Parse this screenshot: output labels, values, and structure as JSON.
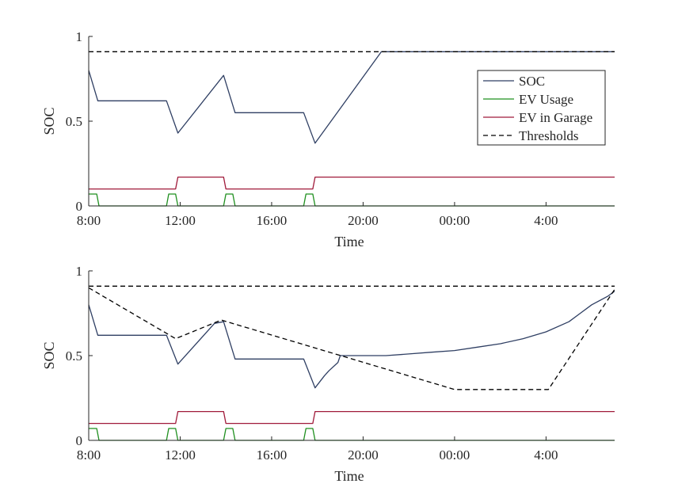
{
  "chart_data": [
    {
      "type": "line",
      "xlabel": "Time",
      "ylabel": "SOC",
      "xlim": [
        8,
        31
      ],
      "ylim": [
        0,
        1
      ],
      "xticks": [
        8,
        12,
        16,
        20,
        24,
        28
      ],
      "xtick_labels": [
        "8:00",
        "12:00",
        "16:00",
        "20:00",
        "00:00",
        "4:00"
      ],
      "yticks": [
        0,
        0.5,
        1
      ],
      "ytick_labels": [
        "0",
        "0.5",
        "1"
      ],
      "grid": false,
      "legend": {
        "placement": "top-right",
        "entries": [
          "SOC",
          "EV Usage",
          "EV in Garage",
          "Thresholds"
        ]
      },
      "series": [
        {
          "name": "SOC",
          "color": "#2f3f63",
          "x": [
            8,
            8.4,
            11.4,
            11.9,
            13.9,
            14.4,
            17.4,
            17.9,
            20.8,
            31
          ],
          "y": [
            0.8,
            0.62,
            0.62,
            0.43,
            0.77,
            0.55,
            0.55,
            0.37,
            0.91,
            0.91
          ]
        },
        {
          "name": "EV Usage",
          "color": "#1f8f1f",
          "x": [
            8,
            8.35,
            8.45,
            11.4,
            11.5,
            11.8,
            11.9,
            13.9,
            14.0,
            14.3,
            14.4,
            17.4,
            17.5,
            17.8,
            17.9,
            31
          ],
          "y": [
            0.07,
            0.07,
            0.0,
            0.0,
            0.07,
            0.07,
            0.0,
            0.0,
            0.07,
            0.07,
            0.0,
            0.0,
            0.07,
            0.07,
            0.0,
            0.0
          ]
        },
        {
          "name": "EV in Garage",
          "color": "#a01a3a",
          "x": [
            8,
            11.8,
            11.9,
            13.9,
            14.0,
            17.8,
            17.9,
            31
          ],
          "y": [
            0.1,
            0.1,
            0.17,
            0.17,
            0.1,
            0.1,
            0.17,
            0.17
          ]
        },
        {
          "name": "Thresholds",
          "color": "#000000",
          "dashed": true,
          "x": [
            8,
            31
          ],
          "y": [
            0.91,
            0.91
          ]
        }
      ]
    },
    {
      "type": "line",
      "xlabel": "Time",
      "ylabel": "SOC",
      "xlim": [
        8,
        31
      ],
      "ylim": [
        0,
        1
      ],
      "xticks": [
        8,
        12,
        16,
        20,
        24,
        28
      ],
      "xtick_labels": [
        "8:00",
        "12:00",
        "16:00",
        "20:00",
        "00:00",
        "4:00"
      ],
      "yticks": [
        0,
        0.5,
        1
      ],
      "ytick_labels": [
        "0",
        "0.5",
        "1"
      ],
      "grid": false,
      "series": [
        {
          "name": "SOC",
          "color": "#2f3f63",
          "x": [
            8,
            8.4,
            11.4,
            11.9,
            13.5,
            13.9,
            14.4,
            17.4,
            17.9,
            18.3,
            18.5,
            18.9,
            19.0,
            21.0,
            22.0,
            23.0,
            24.0,
            25.0,
            26.0,
            27.0,
            28.0,
            29.0,
            29.5,
            30.0,
            30.7,
            31
          ],
          "y": [
            0.8,
            0.62,
            0.62,
            0.45,
            0.69,
            0.7,
            0.48,
            0.48,
            0.31,
            0.38,
            0.41,
            0.46,
            0.5,
            0.5,
            0.51,
            0.52,
            0.53,
            0.55,
            0.57,
            0.6,
            0.64,
            0.7,
            0.75,
            0.8,
            0.85,
            0.88
          ]
        },
        {
          "name": "EV Usage",
          "color": "#1f8f1f",
          "x": [
            8,
            8.35,
            8.45,
            11.4,
            11.5,
            11.8,
            11.9,
            13.9,
            14.0,
            14.3,
            14.4,
            17.4,
            17.5,
            17.8,
            17.9,
            31
          ],
          "y": [
            0.07,
            0.07,
            0.0,
            0.0,
            0.07,
            0.07,
            0.0,
            0.0,
            0.07,
            0.07,
            0.0,
            0.0,
            0.07,
            0.07,
            0.0,
            0.0
          ]
        },
        {
          "name": "EV in Garage",
          "color": "#a01a3a",
          "x": [
            8,
            11.8,
            11.9,
            13.9,
            14.0,
            17.8,
            17.9,
            31
          ],
          "y": [
            0.1,
            0.1,
            0.17,
            0.17,
            0.1,
            0.1,
            0.17,
            0.17
          ]
        },
        {
          "name": "Thresholds",
          "color": "#000000",
          "dashed": true,
          "x": [
            8,
            31
          ],
          "y": [
            0.91,
            0.91
          ]
        },
        {
          "name": "Thresholds",
          "color": "#000000",
          "dashed": true,
          "x": [
            8,
            11.8,
            13.8,
            24.0,
            28.1,
            31
          ],
          "y": [
            0.9,
            0.6,
            0.71,
            0.3,
            0.3,
            0.89
          ]
        }
      ]
    }
  ]
}
